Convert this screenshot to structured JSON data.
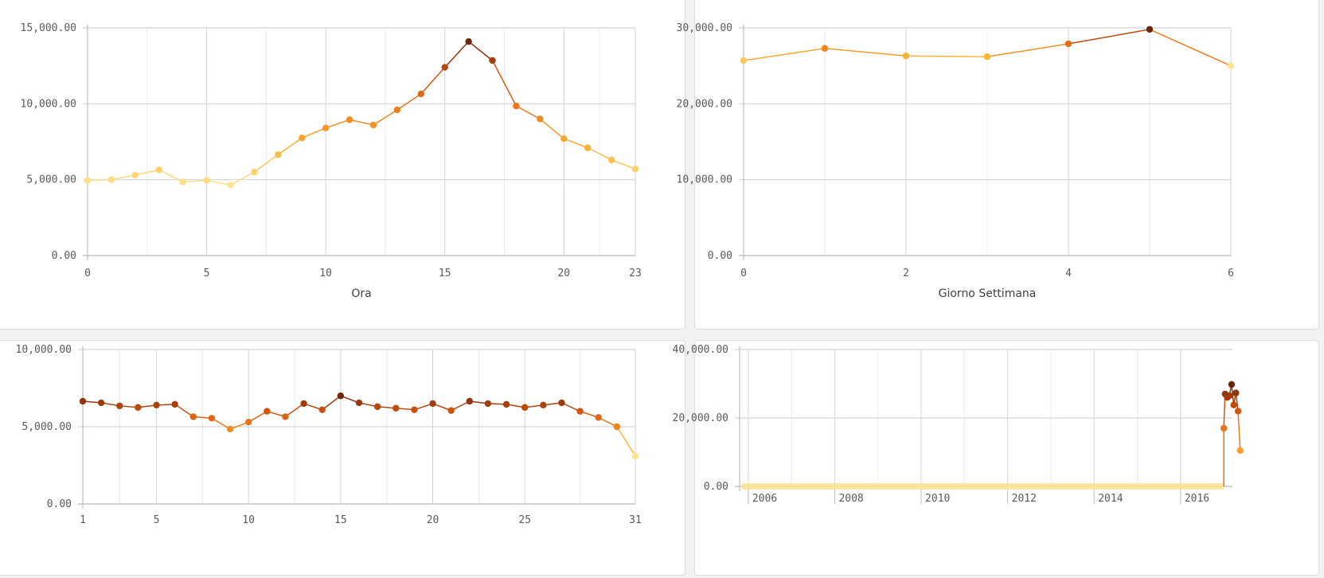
{
  "palette": {
    "low": "#fee391",
    "midlow": "#fdb538",
    "mid": "#f0801d",
    "midhigh": "#d25310",
    "high": "#6b2607",
    "grid_major": "#d4d4d4",
    "grid_minor": "#ececec"
  },
  "chart_data": [
    {
      "type": "line",
      "title": "",
      "xlabel": "Ora",
      "ylabel": "",
      "ylim": [
        0,
        15000
      ],
      "xlim": [
        0,
        23
      ],
      "y_ticks": [
        "0.00",
        "5,000.00",
        "10,000.00",
        "15,000.00"
      ],
      "y_tick_values": [
        0,
        5000,
        10000,
        15000
      ],
      "x_ticks": [
        "0",
        "5",
        "10",
        "15",
        "20",
        "23"
      ],
      "x_tick_values": [
        0,
        5,
        10,
        15,
        20,
        23
      ],
      "x": [
        0,
        1,
        2,
        3,
        4,
        5,
        6,
        7,
        8,
        9,
        10,
        11,
        12,
        13,
        14,
        15,
        16,
        17,
        18,
        19,
        20,
        21,
        22,
        23
      ],
      "values": [
        4950,
        5000,
        5300,
        5650,
        4850,
        4950,
        4650,
        5500,
        6650,
        7750,
        8400,
        8950,
        8600,
        9600,
        10650,
        12400,
        14100,
        12850,
        9850,
        9000,
        7700,
        7100,
        6300,
        5700
      ],
      "grid": true
    },
    {
      "type": "line",
      "title": "",
      "xlabel": "Giorno Settimana",
      "ylabel": "",
      "ylim": [
        0,
        30000
      ],
      "xlim": [
        0,
        6
      ],
      "y_ticks": [
        "0.00",
        "10,000.00",
        "20,000.00",
        "30,000.00"
      ],
      "y_tick_values": [
        0,
        10000,
        20000,
        30000
      ],
      "x_ticks": [
        "0",
        "2",
        "4",
        "6"
      ],
      "x_tick_values": [
        0,
        2,
        4,
        6
      ],
      "x": [
        0,
        1,
        2,
        3,
        4,
        5,
        6
      ],
      "values": [
        25700,
        27300,
        26300,
        26200,
        27900,
        29800,
        25000
      ],
      "grid": true
    },
    {
      "type": "line",
      "title": "",
      "xlabel": "",
      "ylabel": "",
      "ylim": [
        0,
        10000
      ],
      "xlim": [
        1,
        31
      ],
      "y_ticks": [
        "0.00",
        "5,000.00",
        "10,000.00"
      ],
      "y_tick_values": [
        0,
        5000,
        10000
      ],
      "x_ticks": [
        "1",
        "5",
        "10",
        "15",
        "20",
        "25",
        "31"
      ],
      "x_tick_values": [
        1,
        5,
        10,
        15,
        20,
        25,
        31
      ],
      "x": [
        1,
        2,
        3,
        4,
        5,
        6,
        7,
        8,
        9,
        10,
        11,
        12,
        13,
        14,
        15,
        16,
        17,
        18,
        19,
        20,
        21,
        22,
        23,
        24,
        25,
        26,
        27,
        28,
        29,
        30,
        31
      ],
      "values": [
        6650,
        6550,
        6350,
        6250,
        6400,
        6450,
        5650,
        5550,
        4850,
        5300,
        6000,
        5650,
        6500,
        6100,
        7000,
        6550,
        6300,
        6200,
        6100,
        6500,
        6050,
        6650,
        6500,
        6450,
        6250,
        6400,
        6550,
        6000,
        5600,
        5000,
        3100
      ],
      "grid": true
    },
    {
      "type": "line",
      "title": "",
      "xlabel": "",
      "ylabel": "",
      "ylim": [
        0,
        40000
      ],
      "xlim": [
        2005.8,
        2017.2
      ],
      "y_ticks": [
        "0.00",
        "20,000.00",
        "40,000.00"
      ],
      "y_tick_values": [
        0,
        20000,
        40000
      ],
      "x_ticks": [
        "2006",
        "2008",
        "2010",
        "2012",
        "2014",
        "2016"
      ],
      "x_tick_values": [
        2006,
        2008,
        2010,
        2012,
        2014,
        2016
      ],
      "x": [
        2017.0,
        2017.03,
        2017.08,
        2017.13,
        2017.18,
        2017.23,
        2017.28,
        2017.33,
        2017.38
      ],
      "values": [
        17000,
        27000,
        26000,
        26500,
        29800,
        23800,
        27300,
        22000,
        10500
      ],
      "baseline_start": 2005.85,
      "baseline_end": 2017.0,
      "grid": true
    }
  ]
}
